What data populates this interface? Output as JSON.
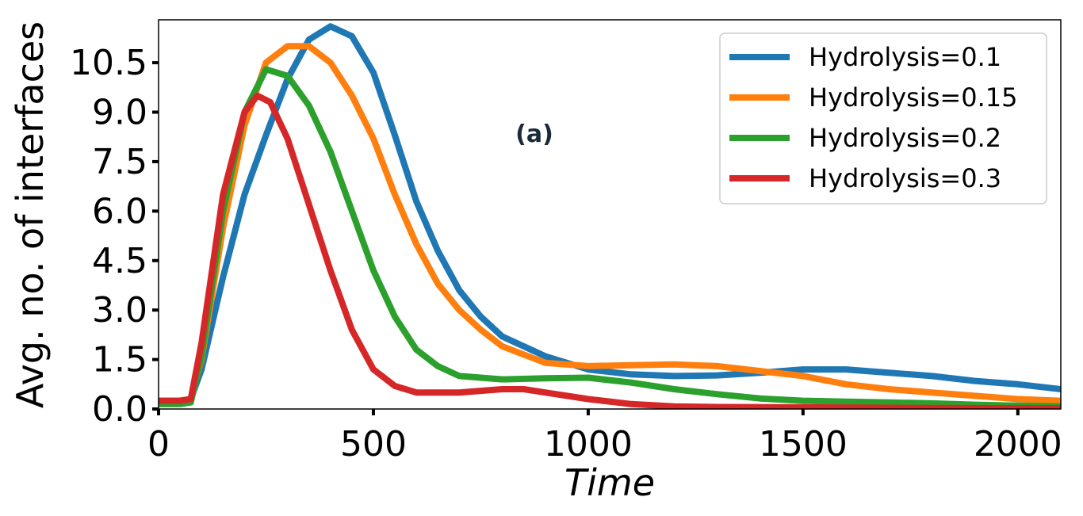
{
  "chart_data": {
    "type": "line",
    "title": "",
    "annotation": "(a)",
    "xlabel": "Time",
    "ylabel": "Avg. no. of interfaces",
    "xlim": [
      0,
      2100
    ],
    "ylim": [
      0,
      11.8
    ],
    "xticks": [
      0,
      500,
      1000,
      1500,
      2000
    ],
    "xtick_labels": [
      "0",
      "500",
      "1000",
      "1500",
      "2000"
    ],
    "yticks": [
      0,
      1.5,
      3,
      4.5,
      6,
      7.5,
      9,
      10.5
    ],
    "ytick_labels": [
      "0.0",
      "1.5",
      "3.0",
      "4.5",
      "6.0",
      "7.5",
      "9.0",
      "10.5"
    ],
    "legend_position": "top-right",
    "grid": false,
    "colors": {
      "annotation": "#1b2a3a",
      "axes": "#000000"
    },
    "series": [
      {
        "name": "Hydrolysis=0.1",
        "color": "#1f77b4",
        "points": [
          [
            0,
            0.25
          ],
          [
            50,
            0.25
          ],
          [
            75,
            0.3
          ],
          [
            100,
            1.2
          ],
          [
            150,
            4
          ],
          [
            200,
            6.5
          ],
          [
            250,
            8.3
          ],
          [
            300,
            10
          ],
          [
            350,
            11.2
          ],
          [
            400,
            11.6
          ],
          [
            450,
            11.3
          ],
          [
            500,
            10.2
          ],
          [
            550,
            8.3
          ],
          [
            600,
            6.3
          ],
          [
            650,
            4.8
          ],
          [
            700,
            3.6
          ],
          [
            750,
            2.8
          ],
          [
            800,
            2.2
          ],
          [
            900,
            1.6
          ],
          [
            1000,
            1.2
          ],
          [
            1100,
            1.05
          ],
          [
            1200,
            1.0
          ],
          [
            1300,
            1.02
          ],
          [
            1400,
            1.1
          ],
          [
            1500,
            1.2
          ],
          [
            1600,
            1.2
          ],
          [
            1700,
            1.1
          ],
          [
            1800,
            1.0
          ],
          [
            1900,
            0.85
          ],
          [
            2000,
            0.75
          ],
          [
            2100,
            0.6
          ]
        ]
      },
      {
        "name": "Hydrolysis=0.15",
        "color": "#ff7f0e",
        "points": [
          [
            0,
            0.25
          ],
          [
            50,
            0.25
          ],
          [
            75,
            0.3
          ],
          [
            100,
            1.5
          ],
          [
            150,
            5.5
          ],
          [
            200,
            8.6
          ],
          [
            250,
            10.5
          ],
          [
            300,
            11.0
          ],
          [
            350,
            11.0
          ],
          [
            400,
            10.5
          ],
          [
            450,
            9.5
          ],
          [
            500,
            8.2
          ],
          [
            550,
            6.5
          ],
          [
            600,
            5.0
          ],
          [
            650,
            3.8
          ],
          [
            700,
            3.0
          ],
          [
            750,
            2.4
          ],
          [
            800,
            1.9
          ],
          [
            900,
            1.4
          ],
          [
            1000,
            1.3
          ],
          [
            1100,
            1.33
          ],
          [
            1200,
            1.35
          ],
          [
            1300,
            1.3
          ],
          [
            1400,
            1.15
          ],
          [
            1500,
            1.0
          ],
          [
            1600,
            0.75
          ],
          [
            1700,
            0.6
          ],
          [
            1800,
            0.5
          ],
          [
            1900,
            0.4
          ],
          [
            2000,
            0.3
          ],
          [
            2100,
            0.25
          ]
        ]
      },
      {
        "name": "Hydrolysis=0.2",
        "color": "#2ca02c",
        "points": [
          [
            0,
            0.15
          ],
          [
            50,
            0.15
          ],
          [
            75,
            0.2
          ],
          [
            100,
            1.6
          ],
          [
            150,
            6
          ],
          [
            200,
            9.0
          ],
          [
            250,
            10.3
          ],
          [
            300,
            10.1
          ],
          [
            350,
            9.2
          ],
          [
            400,
            7.8
          ],
          [
            450,
            6.0
          ],
          [
            500,
            4.2
          ],
          [
            550,
            2.8
          ],
          [
            600,
            1.8
          ],
          [
            650,
            1.3
          ],
          [
            700,
            1.0
          ],
          [
            800,
            0.9
          ],
          [
            900,
            0.93
          ],
          [
            1000,
            0.95
          ],
          [
            1100,
            0.8
          ],
          [
            1200,
            0.6
          ],
          [
            1300,
            0.45
          ],
          [
            1400,
            0.32
          ],
          [
            1500,
            0.25
          ],
          [
            1600,
            0.22
          ],
          [
            1700,
            0.2
          ],
          [
            1800,
            0.17
          ],
          [
            1900,
            0.13
          ],
          [
            2000,
            0.1
          ],
          [
            2100,
            0.08
          ]
        ]
      },
      {
        "name": "Hydrolysis=0.3",
        "color": "#d62728",
        "points": [
          [
            0,
            0.25
          ],
          [
            50,
            0.25
          ],
          [
            75,
            0.3
          ],
          [
            100,
            2.0
          ],
          [
            150,
            6.5
          ],
          [
            200,
            9.0
          ],
          [
            230,
            9.5
          ],
          [
            260,
            9.3
          ],
          [
            300,
            8.2
          ],
          [
            350,
            6.2
          ],
          [
            400,
            4.2
          ],
          [
            450,
            2.4
          ],
          [
            500,
            1.2
          ],
          [
            550,
            0.7
          ],
          [
            600,
            0.5
          ],
          [
            700,
            0.5
          ],
          [
            800,
            0.6
          ],
          [
            850,
            0.6
          ],
          [
            900,
            0.5
          ],
          [
            1000,
            0.3
          ],
          [
            1100,
            0.15
          ],
          [
            1200,
            0.08
          ],
          [
            1300,
            0.06
          ],
          [
            1500,
            0.05
          ],
          [
            1800,
            0.03
          ],
          [
            2100,
            0.02
          ]
        ]
      }
    ]
  }
}
